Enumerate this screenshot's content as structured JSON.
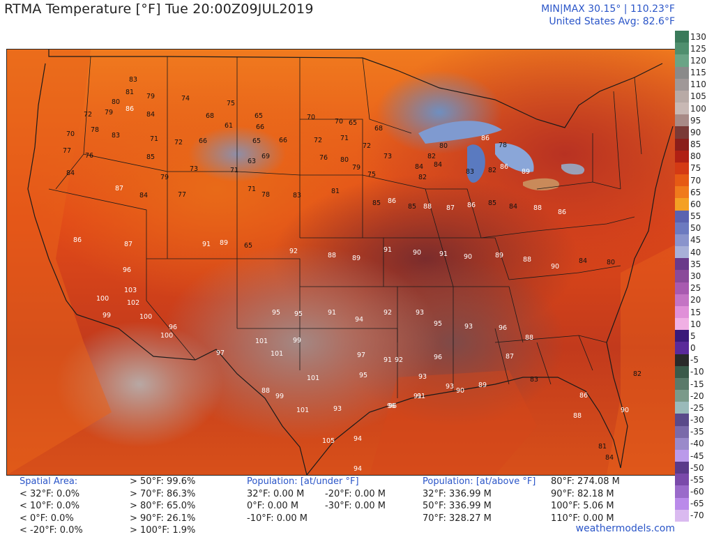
{
  "title": "RTMA Temperature [°F]  Tue 20:00Z09JUL2019",
  "minmax": {
    "line1": "MIN|MAX 30.15°  |  110.23°F",
    "line2": "United States Avg: 82.6°F"
  },
  "colorbar": {
    "ticks": [
      "130",
      "125",
      "120",
      "115",
      "110",
      "105",
      "100",
      "95",
      "90",
      "85",
      "80",
      "75",
      "70",
      "65",
      "60",
      "55",
      "50",
      "45",
      "40",
      "35",
      "30",
      "25",
      "20",
      "15",
      "10",
      "5",
      "0",
      "-5",
      "-10",
      "-15",
      "-20",
      "-25",
      "-30",
      "-35",
      "-40",
      "-45",
      "-50",
      "-55",
      "-60",
      "-65",
      "-70"
    ],
    "colors": [
      "#3a7a5a",
      "#4f8f6e",
      "#6aa486",
      "#8a8a8a",
      "#a09898",
      "#b8aaa6",
      "#c8b8b4",
      "#a88a86",
      "#7a3a36",
      "#8a1e1a",
      "#b02014",
      "#d43a14",
      "#e65a14",
      "#f07a1c",
      "#f4a024",
      "#5a62b0",
      "#6c7ac0",
      "#8a94cc",
      "#a8b0d8",
      "#6a3a8a",
      "#8a4a9a",
      "#a85ab0",
      "#c474c4",
      "#e090d8",
      "#f0b0e4",
      "#3a1a7a",
      "#5a2a9a",
      "#2a2a2a",
      "#3a5a4a",
      "#5a7a6a",
      "#7a9a8a",
      "#9ababa",
      "#5a4a8a",
      "#7a6aaa",
      "#9a8aca",
      "#ba9aea",
      "#5a3a8a",
      "#7a4aaa",
      "#9a6aca",
      "#ba8aea",
      "#dabaf0"
    ]
  },
  "footer": {
    "spatial": {
      "header": "Spatial Area:",
      "rows": [
        "< 32°F: 0.0%",
        "< 10°F: 0.0%",
        "< 0°F: 0.0%",
        "< -20°F: 0.0%"
      ]
    },
    "above": {
      "rows": [
        "> 50°F: 99.6%",
        "> 70°F: 86.3%",
        "> 80°F: 65.0%",
        "> 90°F: 26.1%",
        "> 100°F: 1.9%"
      ]
    },
    "pop_under": {
      "header": "Population: [at/under °F]",
      "rows": [
        "32°F: 0.00 M",
        "0°F: 0.00 M",
        "-10°F: 0.00 M"
      ],
      "rows2": [
        "-20°F: 0.00 M",
        "-30°F: 0.00 M"
      ]
    },
    "pop_above": {
      "header": "Population: [at/above °F]",
      "rows": [
        "32°F: 336.99 M",
        "50°F: 336.99 M",
        "70°F: 328.27 M"
      ],
      "rows2": [
        "80°F: 274.08 M",
        "90°F: 82.18 M",
        "100°F: 5.06 M",
        "110°F: 0.00 M"
      ]
    },
    "site": "weathermodels.com"
  },
  "temps": [
    {
      "v": "83"
    },
    {
      "v": "81"
    },
    {
      "v": "79"
    },
    {
      "v": "80"
    },
    {
      "v": "86"
    },
    {
      "v": "84"
    },
    {
      "v": "72"
    },
    {
      "v": "79"
    },
    {
      "v": "74"
    },
    {
      "v": "75"
    },
    {
      "v": "68"
    },
    {
      "v": "61"
    },
    {
      "v": "65"
    },
    {
      "v": "66"
    },
    {
      "v": "70"
    },
    {
      "v": "70"
    },
    {
      "v": "65"
    },
    {
      "v": "68"
    },
    {
      "v": "70"
    },
    {
      "v": "78"
    },
    {
      "v": "83"
    },
    {
      "v": "71"
    },
    {
      "v": "72"
    },
    {
      "v": "66"
    },
    {
      "v": "65"
    },
    {
      "v": "66"
    },
    {
      "v": "72"
    },
    {
      "v": "71"
    },
    {
      "v": "72"
    },
    {
      "v": "73"
    },
    {
      "v": "82"
    },
    {
      "v": "80"
    },
    {
      "v": "86"
    },
    {
      "v": "78"
    },
    {
      "v": "77"
    },
    {
      "v": "76"
    },
    {
      "v": "85"
    },
    {
      "v": "84"
    },
    {
      "v": "79"
    },
    {
      "v": "73"
    },
    {
      "v": "71"
    },
    {
      "v": "63"
    },
    {
      "v": "69"
    },
    {
      "v": "76"
    },
    {
      "v": "80"
    },
    {
      "v": "79"
    },
    {
      "v": "75"
    },
    {
      "v": "84"
    },
    {
      "v": "84"
    },
    {
      "v": "82"
    },
    {
      "v": "83"
    },
    {
      "v": "82"
    },
    {
      "v": "86"
    },
    {
      "v": "89"
    },
    {
      "v": "87"
    },
    {
      "v": "84"
    },
    {
      "v": "77"
    },
    {
      "v": "71"
    },
    {
      "v": "78"
    },
    {
      "v": "83"
    },
    {
      "v": "81"
    },
    {
      "v": "85"
    },
    {
      "v": "86"
    },
    {
      "v": "85"
    },
    {
      "v": "88"
    },
    {
      "v": "87"
    },
    {
      "v": "86"
    },
    {
      "v": "85"
    },
    {
      "v": "84"
    },
    {
      "v": "88"
    },
    {
      "v": "86"
    },
    {
      "v": "86"
    },
    {
      "v": "87"
    },
    {
      "v": "91"
    },
    {
      "v": "89"
    },
    {
      "v": "65"
    },
    {
      "v": "92"
    },
    {
      "v": "88"
    },
    {
      "v": "89"
    },
    {
      "v": "91"
    },
    {
      "v": "90"
    },
    {
      "v": "91"
    },
    {
      "v": "90"
    },
    {
      "v": "89"
    },
    {
      "v": "88"
    },
    {
      "v": "90"
    },
    {
      "v": "84"
    },
    {
      "v": "80"
    },
    {
      "v": "96"
    },
    {
      "v": "103"
    },
    {
      "v": "100"
    },
    {
      "v": "102"
    },
    {
      "v": "99"
    },
    {
      "v": "100"
    },
    {
      "v": "96"
    },
    {
      "v": "95"
    },
    {
      "v": "95"
    },
    {
      "v": "91"
    },
    {
      "v": "94"
    },
    {
      "v": "92"
    },
    {
      "v": "93"
    },
    {
      "v": "95"
    },
    {
      "v": "93"
    },
    {
      "v": "96"
    },
    {
      "v": "88"
    },
    {
      "v": "100"
    },
    {
      "v": "101"
    },
    {
      "v": "101"
    },
    {
      "v": "99"
    },
    {
      "v": "97"
    },
    {
      "v": "91"
    },
    {
      "v": "97"
    },
    {
      "v": "96"
    },
    {
      "v": "93"
    },
    {
      "v": "92"
    },
    {
      "v": "87"
    },
    {
      "v": "101"
    },
    {
      "v": "95"
    },
    {
      "v": "93"
    },
    {
      "v": "96"
    },
    {
      "v": "91"
    },
    {
      "v": "83"
    },
    {
      "v": "88"
    },
    {
      "v": "99"
    },
    {
      "v": "101"
    },
    {
      "v": "93"
    },
    {
      "v": "96"
    },
    {
      "v": "90"
    },
    {
      "v": "89"
    },
    {
      "v": "91"
    },
    {
      "v": "86"
    },
    {
      "v": "105"
    },
    {
      "v": "94"
    },
    {
      "v": "94"
    },
    {
      "v": "88"
    },
    {
      "v": "90"
    },
    {
      "v": "81"
    },
    {
      "v": "84"
    },
    {
      "v": "82"
    }
  ]
}
